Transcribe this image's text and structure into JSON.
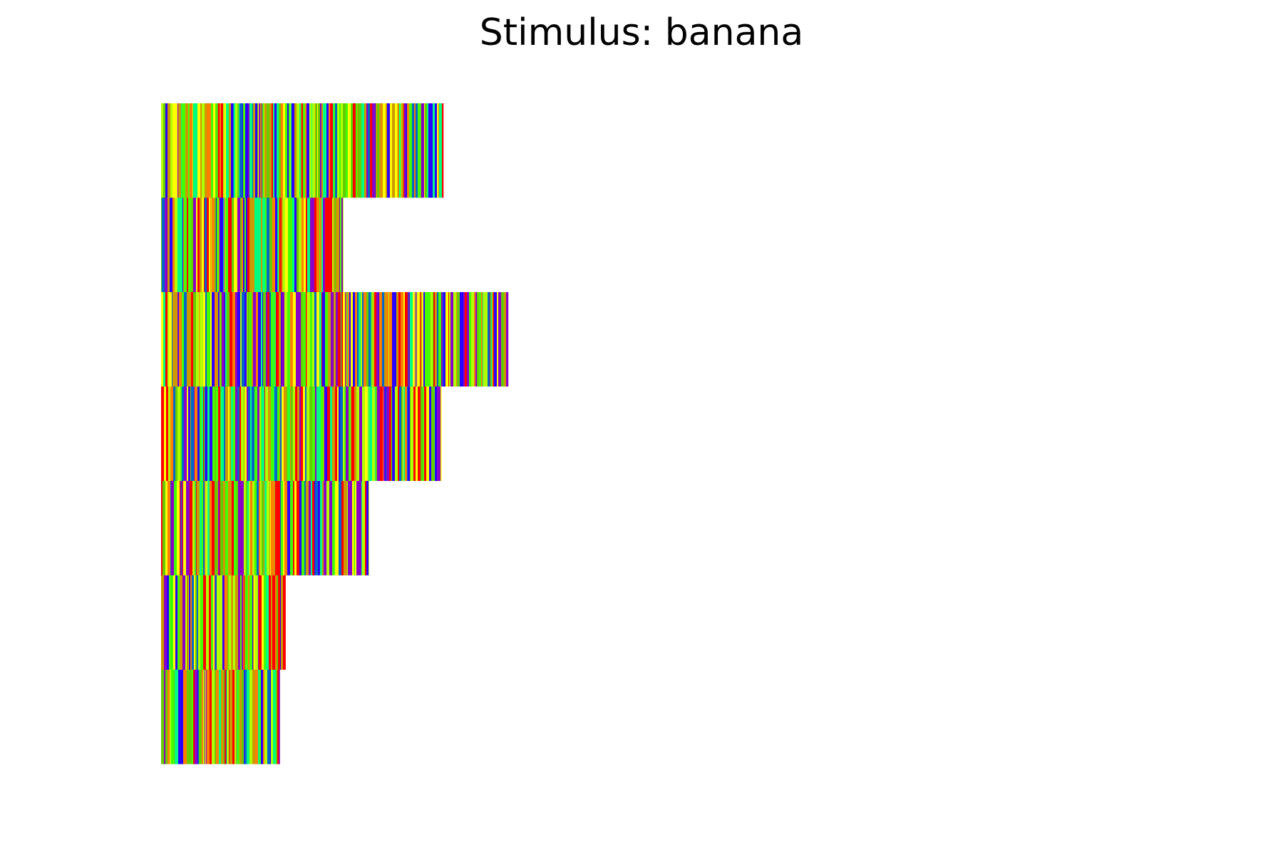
{
  "chart_data": {
    "type": "heatmap",
    "title": "Stimulus: banana",
    "xlabel": "",
    "ylabel": "",
    "axes_visible": false,
    "grid": false,
    "colormap": "prism",
    "rows": [
      {
        "length": 440
      },
      {
        "length": 284
      },
      {
        "length": 541
      },
      {
        "length": 437
      },
      {
        "length": 324
      },
      {
        "length": 194
      },
      {
        "length": 185
      }
    ],
    "xlim": [
      0,
      1560
    ]
  },
  "colors": {
    "prism": [
      "#ff0000",
      "#ff7f00",
      "#ffff00",
      "#b2ff00",
      "#44ff00",
      "#00ff80",
      "#0066cc",
      "#2a00ff",
      "#8b00c8",
      "#cc9900",
      "#66cc00"
    ]
  }
}
